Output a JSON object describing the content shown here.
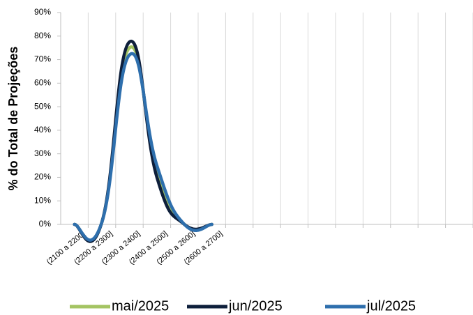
{
  "chart_data": {
    "type": "line",
    "y_axis_label": "% do Total de Projeções",
    "categories": [
      "(2100 a 2200]",
      "(2200 a 2300]",
      "(2300 a 2400]",
      "(2400 a 2500]",
      "(2500 a 2600]",
      "(2600 a 2700]",
      null,
      null,
      null,
      null,
      null,
      null,
      null,
      null,
      null
    ],
    "series": [
      {
        "name": "mai/2025",
        "color": "#a4c463",
        "values": [
          0,
          1,
          75,
          22,
          0,
          0,
          null,
          null,
          null,
          null,
          null,
          null,
          null,
          null,
          null
        ]
      },
      {
        "name": "jun/2025",
        "color": "#0e1f3b",
        "values": [
          0,
          1,
          77.5,
          20,
          0,
          0,
          null,
          null,
          null,
          null,
          null,
          null,
          null,
          null,
          null
        ]
      },
      {
        "name": "jul/2025",
        "color": "#2e6fad",
        "values": [
          0,
          1,
          72,
          25,
          0,
          0,
          null,
          null,
          null,
          null,
          null,
          null,
          null,
          null,
          null
        ]
      }
    ],
    "ylim": [
      0,
      90
    ],
    "yticks": [
      {
        "value": 0,
        "label": "0%"
      },
      {
        "value": 10,
        "label": "10%"
      },
      {
        "value": 20,
        "label": "20%"
      },
      {
        "value": 30,
        "label": "30%"
      },
      {
        "value": 40,
        "label": "40%"
      },
      {
        "value": 50,
        "label": "50%"
      },
      {
        "value": 60,
        "label": "60%"
      },
      {
        "value": 70,
        "label": "70%"
      },
      {
        "value": 80,
        "label": "80%"
      },
      {
        "value": 90,
        "label": "90%"
      }
    ],
    "vertical_grid": true,
    "legend": "bottom"
  }
}
